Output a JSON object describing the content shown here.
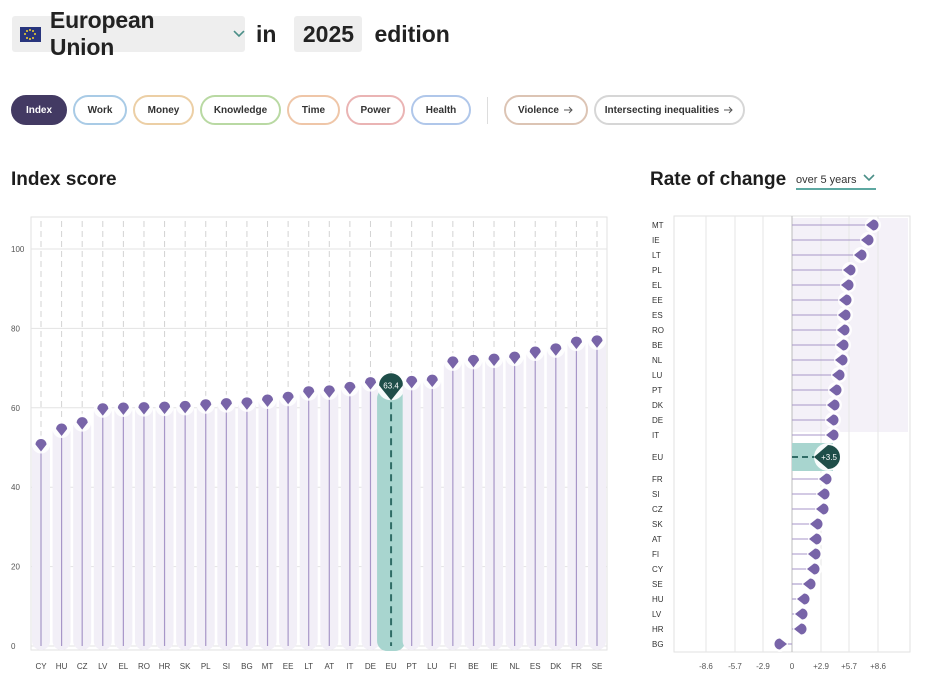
{
  "header": {
    "country": "European Union",
    "in_label": "in",
    "year": "2025",
    "edition_label": "edition"
  },
  "tabs": [
    {
      "label": "Index",
      "color": "#433a63",
      "active": true
    },
    {
      "label": "Work",
      "color": "#a9cbe6"
    },
    {
      "label": "Money",
      "color": "#eccfa5"
    },
    {
      "label": "Knowledge",
      "color": "#b9d9a3"
    },
    {
      "label": "Time",
      "color": "#efc6a8"
    },
    {
      "label": "Power",
      "color": "#eab4b4"
    },
    {
      "label": "Health",
      "color": "#b0c7ea"
    }
  ],
  "extra_tabs": [
    {
      "label": "Violence",
      "icon": "arrow-right-icon",
      "color": "#dcc4b4"
    },
    {
      "label": "Intersecting inequalities",
      "icon": "arrow-right-icon",
      "color": "#d6d6d6"
    }
  ],
  "index_section": {
    "title": "Index score"
  },
  "change_section": {
    "title": "Rate of change",
    "period": "over 5 years"
  },
  "colors": {
    "marker": "#7864a8",
    "panel": "#f2eff7",
    "stem": "#a796c8",
    "highlight": "#a8d5cf",
    "eu_marker": "#1f4e49",
    "eu_dash": "#2f6c66"
  },
  "chart_data": [
    {
      "type": "scatter",
      "title": "Index score",
      "categories": [
        "CY",
        "HU",
        "CZ",
        "LV",
        "EL",
        "RO",
        "HR",
        "SK",
        "PL",
        "SI",
        "BG",
        "MT",
        "EE",
        "LT",
        "AT",
        "IT",
        "DE",
        "EU",
        "PT",
        "LU",
        "FI",
        "BE",
        "IE",
        "NL",
        "ES",
        "DK",
        "FR",
        "SE"
      ],
      "values": [
        50.0,
        53.9,
        55.5,
        59.0,
        59.2,
        59.3,
        59.4,
        59.6,
        60.0,
        60.3,
        60.5,
        61.2,
        61.9,
        63.3,
        63.5,
        64.4,
        65.6,
        63.4,
        65.9,
        66.2,
        70.8,
        71.2,
        71.5,
        72.0,
        73.3,
        74.1,
        75.8,
        76.1
      ],
      "highlight": {
        "category": "EU",
        "label": "63.4"
      },
      "ylim": [
        0,
        100
      ],
      "yticks": [
        0,
        20,
        40,
        60,
        80,
        100
      ],
      "grid": true
    },
    {
      "type": "scatter",
      "title": "Rate of change",
      "orientation": "horizontal",
      "categories": [
        "MT",
        "IE",
        "LT",
        "PL",
        "EL",
        "EE",
        "ES",
        "RO",
        "BE",
        "NL",
        "LU",
        "PT",
        "DK",
        "DE",
        "IT",
        "EU",
        "FR",
        "SI",
        "CZ",
        "SK",
        "AT",
        "FI",
        "CY",
        "SE",
        "HU",
        "LV",
        "HR",
        "BG"
      ],
      "values": [
        8.1,
        7.6,
        6.9,
        5.8,
        5.6,
        5.4,
        5.3,
        5.2,
        5.1,
        5.0,
        4.7,
        4.4,
        4.2,
        4.1,
        4.1,
        3.5,
        3.4,
        3.2,
        3.1,
        2.5,
        2.4,
        2.3,
        2.2,
        1.8,
        1.2,
        1.0,
        0.9,
        -1.2
      ],
      "highlight": {
        "category": "EU",
        "label": "+3.5"
      },
      "xlim": [
        -10.3,
        10.3
      ],
      "xticks": [
        "-8.6",
        "-5.7",
        "-2.9",
        "0",
        "+2.9",
        "+5.7",
        "+8.6"
      ],
      "grid": true
    }
  ]
}
